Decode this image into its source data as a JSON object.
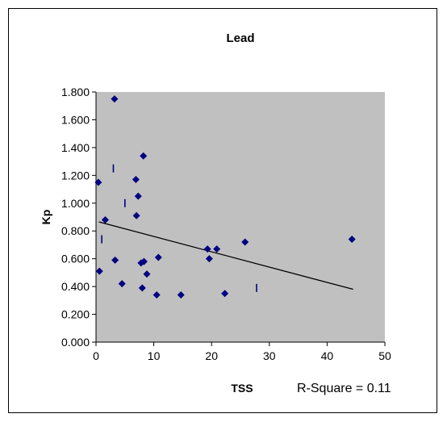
{
  "chart_data": {
    "type": "scatter",
    "title": "Lead",
    "xlabel": "TSS",
    "ylabel": "Kp",
    "annotation": "R-Square = 0.11",
    "xlim": [
      0,
      50
    ],
    "ylim": [
      0,
      1.8
    ],
    "x_ticks": [
      "0",
      "10",
      "20",
      "30",
      "40",
      "50"
    ],
    "y_ticks": [
      "0.000",
      "0.200",
      "0.400",
      "0.600",
      "0.800",
      "1.000",
      "1.200",
      "1.400",
      "1.600",
      "1.800"
    ],
    "plot_background": "#c0c0c0",
    "marker_color": "#000080",
    "legend": "none",
    "grid": false,
    "points": [
      {
        "x": 0.4,
        "y": 1.15
      },
      {
        "x": 0.6,
        "y": 0.51
      },
      {
        "x": 1.6,
        "y": 0.88
      },
      {
        "x": 3.2,
        "y": 1.75
      },
      {
        "x": 3.3,
        "y": 0.59
      },
      {
        "x": 4.5,
        "y": 0.42
      },
      {
        "x": 6.9,
        "y": 1.17
      },
      {
        "x": 7.0,
        "y": 0.91
      },
      {
        "x": 7.3,
        "y": 1.05
      },
      {
        "x": 7.8,
        "y": 0.57
      },
      {
        "x": 8.0,
        "y": 0.39
      },
      {
        "x": 8.2,
        "y": 1.34
      },
      {
        "x": 8.3,
        "y": 0.58
      },
      {
        "x": 8.8,
        "y": 0.49
      },
      {
        "x": 10.5,
        "y": 0.34
      },
      {
        "x": 10.8,
        "y": 0.61
      },
      {
        "x": 14.7,
        "y": 0.34
      },
      {
        "x": 19.3,
        "y": 0.67
      },
      {
        "x": 19.6,
        "y": 0.6
      },
      {
        "x": 20.9,
        "y": 0.67
      },
      {
        "x": 22.3,
        "y": 0.35
      },
      {
        "x": 25.8,
        "y": 0.72
      },
      {
        "x": 44.3,
        "y": 0.74
      }
    ],
    "residual_marks": [
      {
        "x": 1.0,
        "y": 0.74
      },
      {
        "x": 3.0,
        "y": 1.25
      },
      {
        "x": 5.0,
        "y": 1.0
      },
      {
        "x": 27.8,
        "y": 0.39
      }
    ],
    "trendline": {
      "x": [
        0.5,
        44.5
      ],
      "y": [
        0.865,
        0.38
      ]
    }
  }
}
